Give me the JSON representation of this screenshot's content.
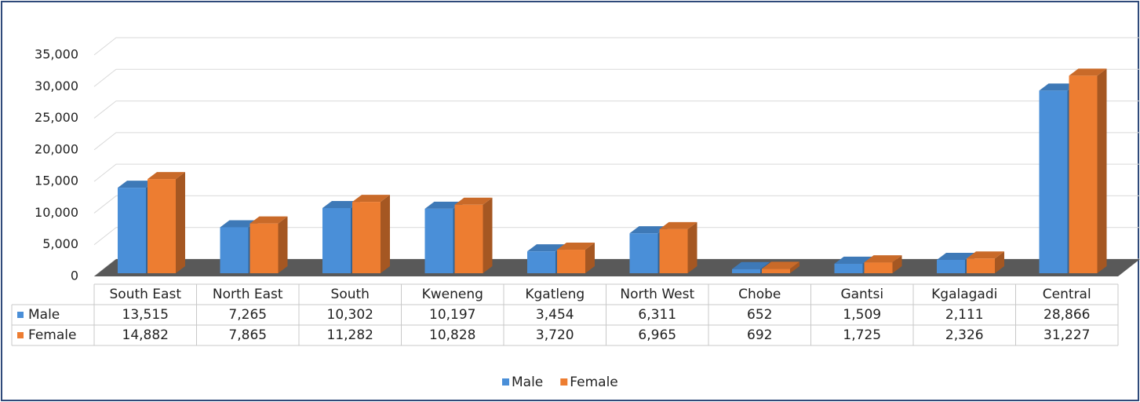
{
  "chart_data": {
    "type": "bar",
    "categories": [
      "South East",
      "North East",
      "South",
      "Kweneng",
      "Kgatleng",
      "North West",
      "Chobe",
      "Gantsi",
      "Kgalagadi",
      "Central"
    ],
    "series": [
      {
        "name": "Male",
        "color": "#4a8fd8",
        "values": [
          13515,
          7265,
          10302,
          10197,
          3454,
          6311,
          652,
          1509,
          2111,
          28866
        ],
        "value_labels": [
          "13,515",
          "7,265",
          "10,302",
          "10,197",
          "3,454",
          "6,311",
          "652",
          "1,509",
          "2,111",
          "28,866"
        ]
      },
      {
        "name": "Female",
        "color": "#ed7d31",
        "values": [
          14882,
          7865,
          11282,
          10828,
          3720,
          6965,
          692,
          1725,
          2326,
          31227
        ],
        "value_labels": [
          "14,882",
          "7,865",
          "11,282",
          "10,828",
          "3,720",
          "6,965",
          "692",
          "1,725",
          "2,326",
          "31,227"
        ]
      }
    ],
    "ylim": [
      0,
      35000
    ],
    "yticks": [
      0,
      {
        "value": 5000,
        "label": "5,000"
      },
      {
        "value": 10000,
        "label": "10,000"
      },
      {
        "value": 15000,
        "label": "15,000"
      },
      {
        "value": 20000,
        "label": "20,000"
      },
      {
        "value": 25000,
        "label": "25,000"
      },
      {
        "value": 30000,
        "label": "30,000"
      },
      {
        "value": 35000,
        "label": "35,000"
      }
    ],
    "grid": true,
    "legend": "bottom"
  }
}
